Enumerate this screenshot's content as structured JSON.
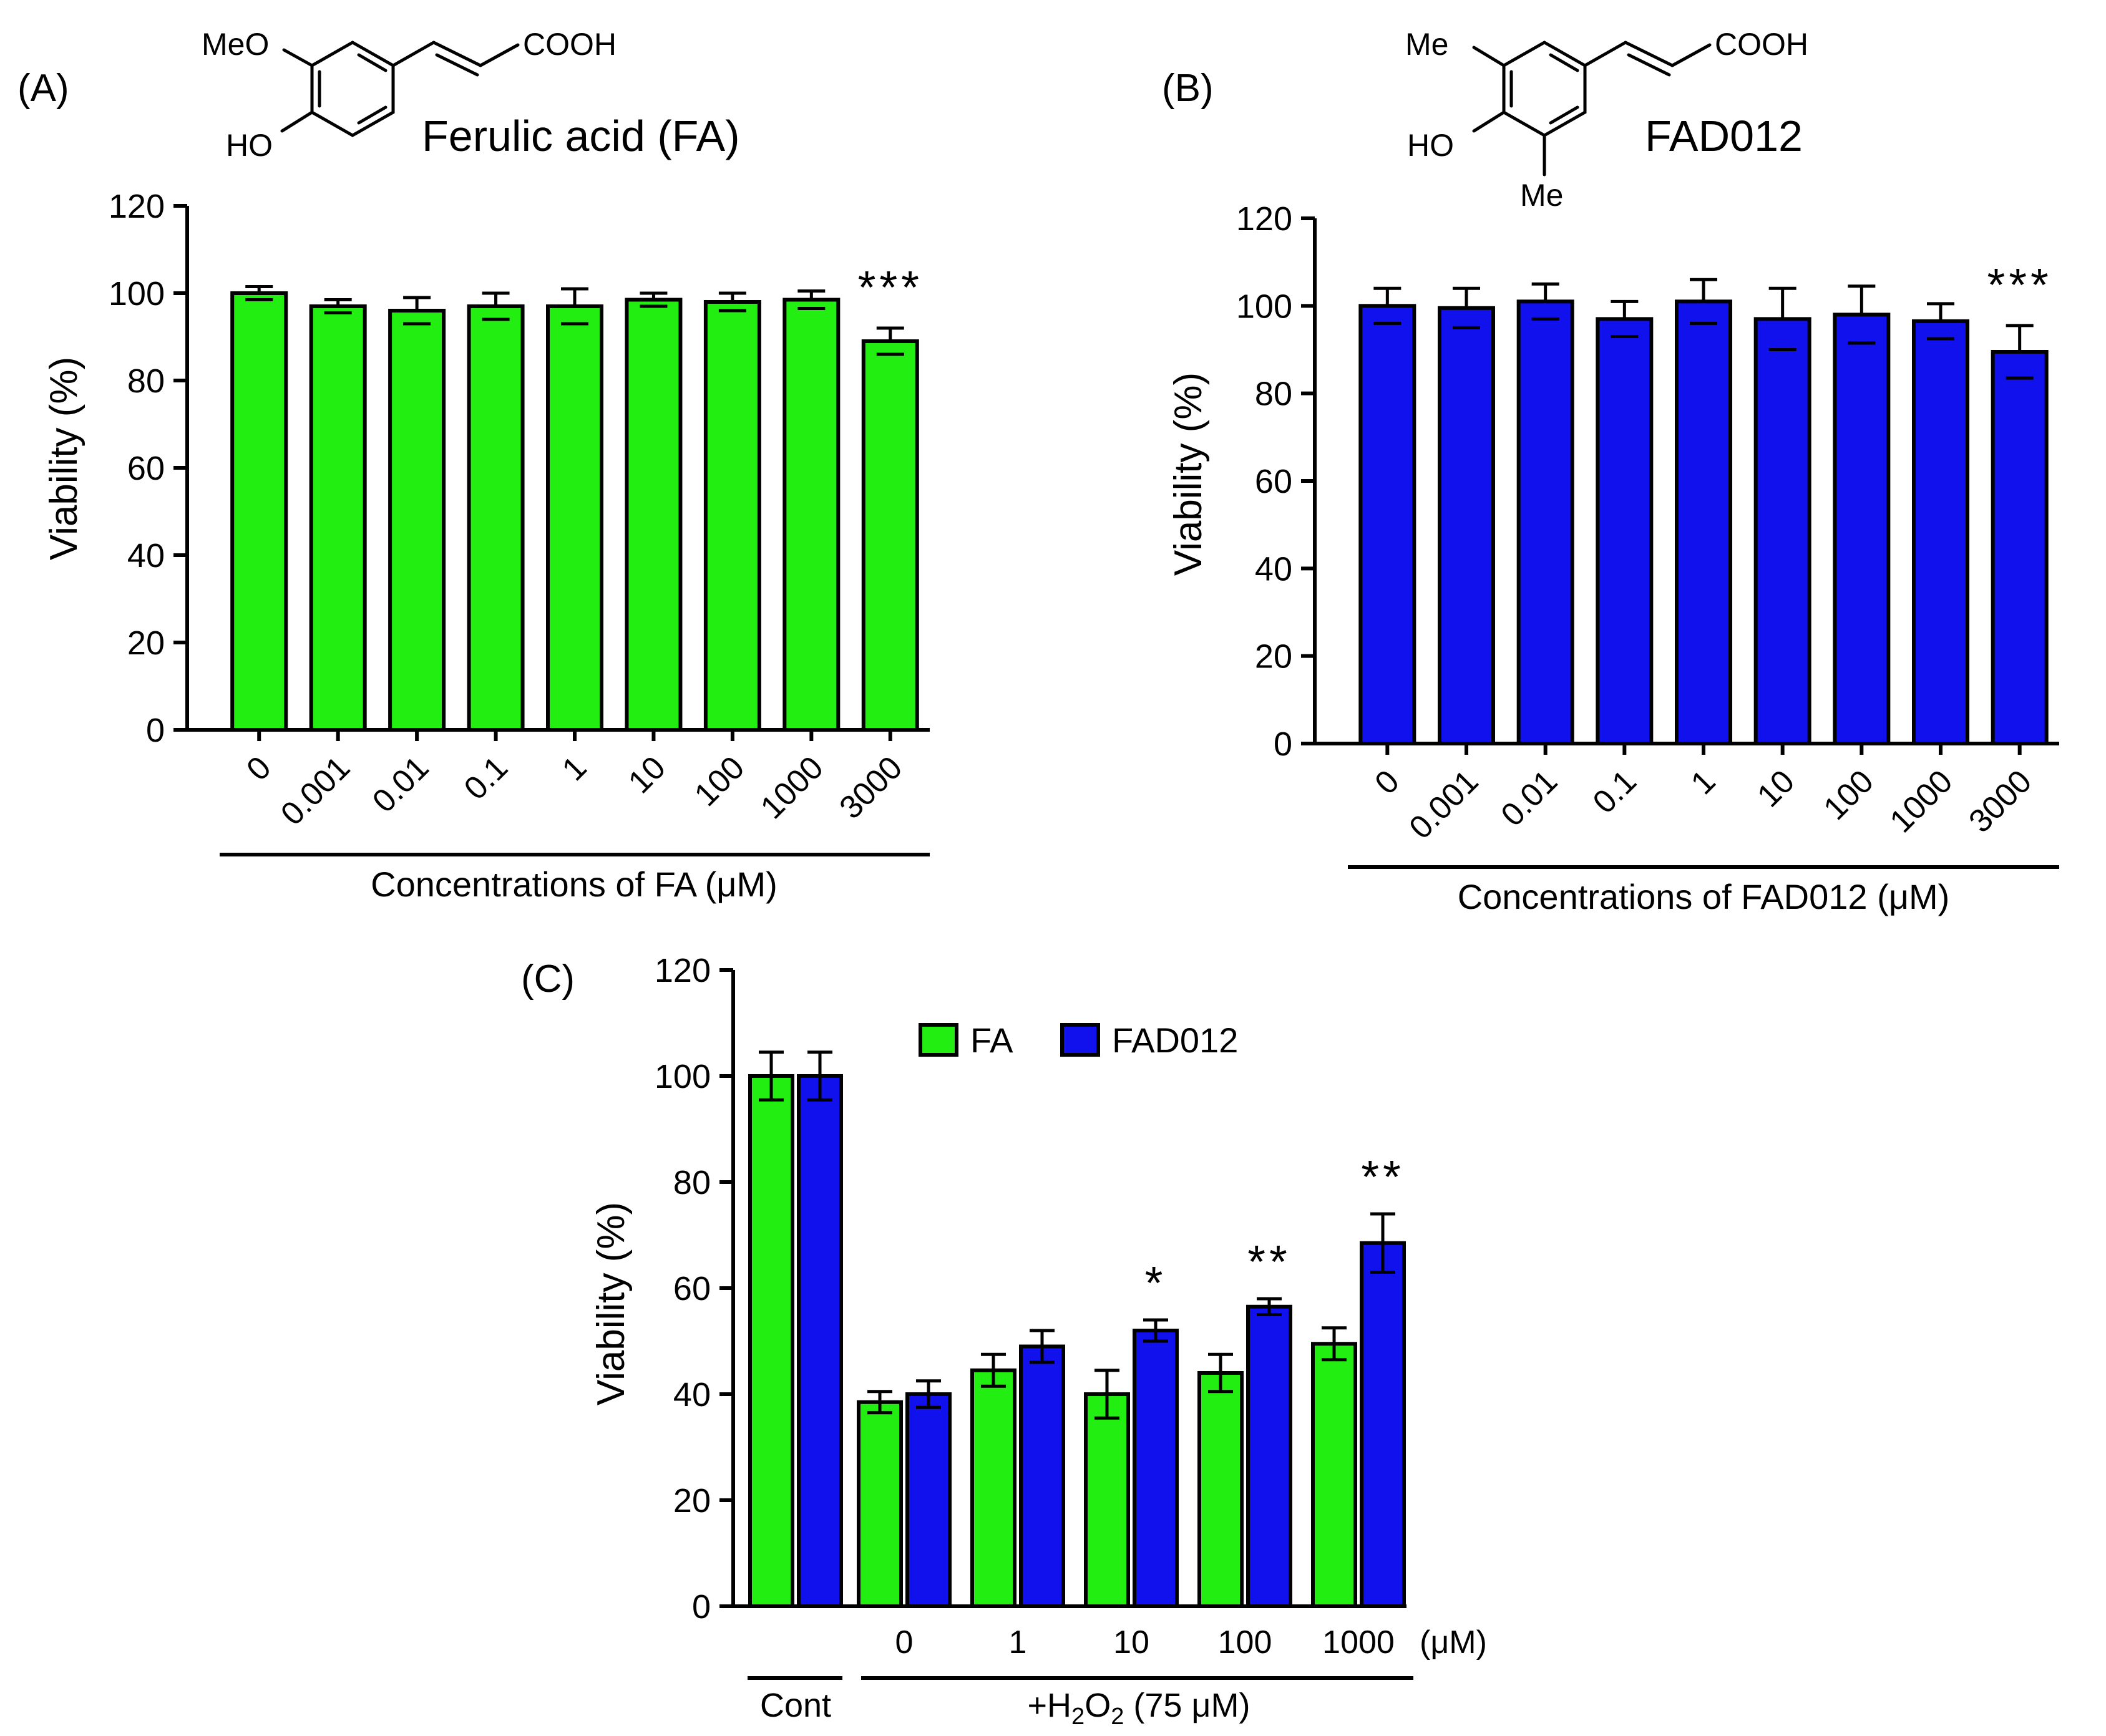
{
  "colors": {
    "fa_green": "#22ee11",
    "fad_blue": "#1111ee",
    "axis": "#000000"
  },
  "panels": {
    "A": {
      "label": "(A)",
      "compound_name": "Ferulic acid (FA)",
      "atoms": {
        "top_left": "MeO",
        "hydroxyl": "HO",
        "acid": "COOH"
      },
      "group_label": "Concentrations of FA (μM)"
    },
    "B": {
      "label": "(B)",
      "compound_name": "FAD012",
      "atoms": {
        "top_left": "Me",
        "hydroxyl": "HO",
        "bottom": "Me",
        "acid": "COOH"
      },
      "group_label": "Concentrations of FAD012 (μM)"
    },
    "C": {
      "label": "(C)",
      "unit_label": "(μM)",
      "cont_label": "Cont",
      "h2o2_prefix": "+H",
      "h2o2_sub1": "2",
      "h2o2_mid": "O",
      "h2o2_sub2": "2",
      "h2o2_suffix": " (75 μM)"
    }
  },
  "chart_data": [
    {
      "panel": "A",
      "type": "bar",
      "ylabel": "Viability (%)",
      "ylim": [
        0,
        120
      ],
      "yticks": [
        0,
        20,
        40,
        60,
        80,
        100,
        120
      ],
      "categories": [
        "0",
        "0.001",
        "0.01",
        "0.1",
        "1",
        "10",
        "100",
        "1000",
        "3000"
      ],
      "values": [
        100,
        97,
        96,
        97,
        97,
        98.5,
        98,
        98.5,
        89
      ],
      "errors": [
        1.5,
        1.5,
        3,
        3,
        4,
        1.5,
        2,
        2,
        3
      ],
      "annotations": [
        {
          "category": "3000",
          "text": "***"
        }
      ],
      "color": "#22ee11"
    },
    {
      "panel": "B",
      "type": "bar",
      "ylabel": "Viability (%)",
      "ylim": [
        0,
        120
      ],
      "yticks": [
        0,
        20,
        40,
        60,
        80,
        100,
        120
      ],
      "categories": [
        "0",
        "0.001",
        "0.01",
        "0.1",
        "1",
        "10",
        "100",
        "1000",
        "3000"
      ],
      "values": [
        100,
        99.5,
        101,
        97,
        101,
        97,
        98,
        96.5,
        89.5
      ],
      "errors": [
        4,
        4.5,
        4,
        4,
        5,
        7,
        6.5,
        4,
        6
      ],
      "annotations": [
        {
          "category": "3000",
          "text": "***"
        }
      ],
      "color": "#1111ee"
    },
    {
      "panel": "C",
      "type": "bar",
      "ylabel": "Viability (%)",
      "ylim": [
        0,
        120
      ],
      "yticks": [
        0,
        20,
        40,
        60,
        80,
        100,
        120
      ],
      "categories": [
        "Cont",
        "0",
        "1",
        "10",
        "100",
        "1000"
      ],
      "series": [
        {
          "name": "FA",
          "color": "#22ee11",
          "values": [
            100,
            38.5,
            44.5,
            40,
            44,
            49.5
          ],
          "errors": [
            4.5,
            2,
            3,
            4.5,
            3.5,
            3
          ]
        },
        {
          "name": "FAD012",
          "color": "#1111ee",
          "values": [
            100,
            40,
            49,
            52,
            56.5,
            68.5
          ],
          "errors": [
            4.5,
            2.5,
            3,
            2,
            1.5,
            5.5
          ]
        }
      ],
      "annotations": [
        {
          "category": "10",
          "series": "FAD012",
          "text": "*"
        },
        {
          "category": "100",
          "series": "FAD012",
          "text": "**"
        },
        {
          "category": "1000",
          "series": "FAD012",
          "text": "**"
        }
      ],
      "legend": "top"
    }
  ]
}
